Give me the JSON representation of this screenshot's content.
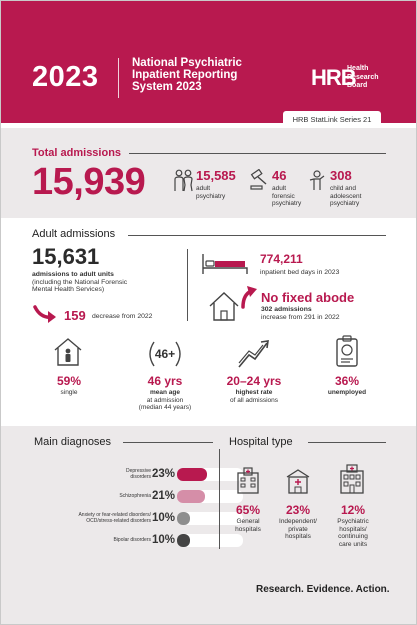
{
  "colors": {
    "brand": "#b8194f",
    "light_pink": "#d58ea8",
    "gray_bar": "#8e8e8e",
    "dark_bar": "#444444",
    "band": "#ece9ea"
  },
  "header": {
    "year": "2023",
    "title_line1": "National Psychiatric",
    "title_line2": "Inpatient Reporting",
    "title_line3": "System 2023",
    "logo_mark": "HRB",
    "logo_line1": "Health",
    "logo_line2": "Research",
    "logo_line3": "Board",
    "series": "HRB StatLink Series 21"
  },
  "total": {
    "heading": "Total admissions",
    "value": "15,939",
    "groups": [
      {
        "value": "15,585",
        "label_line1": "adult",
        "label_line2": "psychiatry",
        "label_line3": "",
        "icon": "people-icon"
      },
      {
        "value": "46",
        "label_line1": "adult",
        "label_line2": "forensic",
        "label_line3": "psychiatry",
        "icon": "gavel-icon"
      },
      {
        "value": "308",
        "label_line1": "child and",
        "label_line2": "adolescent",
        "label_line3": "psychiatry",
        "icon": "child-icon"
      }
    ]
  },
  "adult": {
    "heading": "Adult admissions",
    "value": "15,631",
    "desc_line1": "admissions to adult units",
    "desc_line2": "(including the National Forensic",
    "desc_line3": "Mental Health Services)",
    "decrease_value": "159",
    "decrease_label": "decrease from 2022",
    "bed_days_value": "774,211",
    "bed_days_label": "inpatient bed days in 2023",
    "no_fixed_abode": "No fixed abode",
    "nfa_line1": "302 admissions",
    "nfa_line2": "increase from 291 in 2022",
    "stats": [
      {
        "value": "59%",
        "line1": "single",
        "line2": "",
        "line3": "",
        "icon": "house-person-icon"
      },
      {
        "value": "46 yrs",
        "line1": "mean age",
        "line2": "at admission",
        "line3": "(median 44 years)",
        "icon": "age-46-plus-icon",
        "icon_text": "46+"
      },
      {
        "value": "20–24 yrs",
        "line1": "highest rate",
        "line2": "of all admissions",
        "line3": "",
        "icon": "trend-up-icon"
      },
      {
        "value": "36%",
        "line1": "unemployed",
        "line2": "",
        "line3": "",
        "icon": "id-badge-icon"
      }
    ]
  },
  "diagnoses": {
    "heading": "Main diagnoses",
    "rows": [
      {
        "line1": "Depressive",
        "line2": "disorders",
        "pct": "23%",
        "fraction": 0.23
      },
      {
        "line1": "Schizophrenia",
        "line2": "",
        "pct": "21%",
        "fraction": 0.21
      },
      {
        "line1": "Anxiety or fear-related disorders/",
        "line2": "OCD/stress-related disorders",
        "pct": "10%",
        "fraction": 0.1
      },
      {
        "line1": "Bipolar disorders",
        "line2": "",
        "pct": "10%",
        "fraction": 0.1
      }
    ]
  },
  "hospital": {
    "heading": "Hospital type",
    "types": [
      {
        "value": "65%",
        "line1": "General",
        "line2": "hospitals",
        "line3": "",
        "icon": "hospital-icon"
      },
      {
        "value": "23%",
        "line1": "Independent/",
        "line2": "private",
        "line3": "hospitals",
        "icon": "private-hospital-icon"
      },
      {
        "value": "12%",
        "line1": "Psychiatric",
        "line2": "hospitals/",
        "line3": "continuing",
        "line4": "care units",
        "icon": "psychiatric-hospital-icon"
      }
    ]
  },
  "tagline": "Research. Evidence. Action."
}
